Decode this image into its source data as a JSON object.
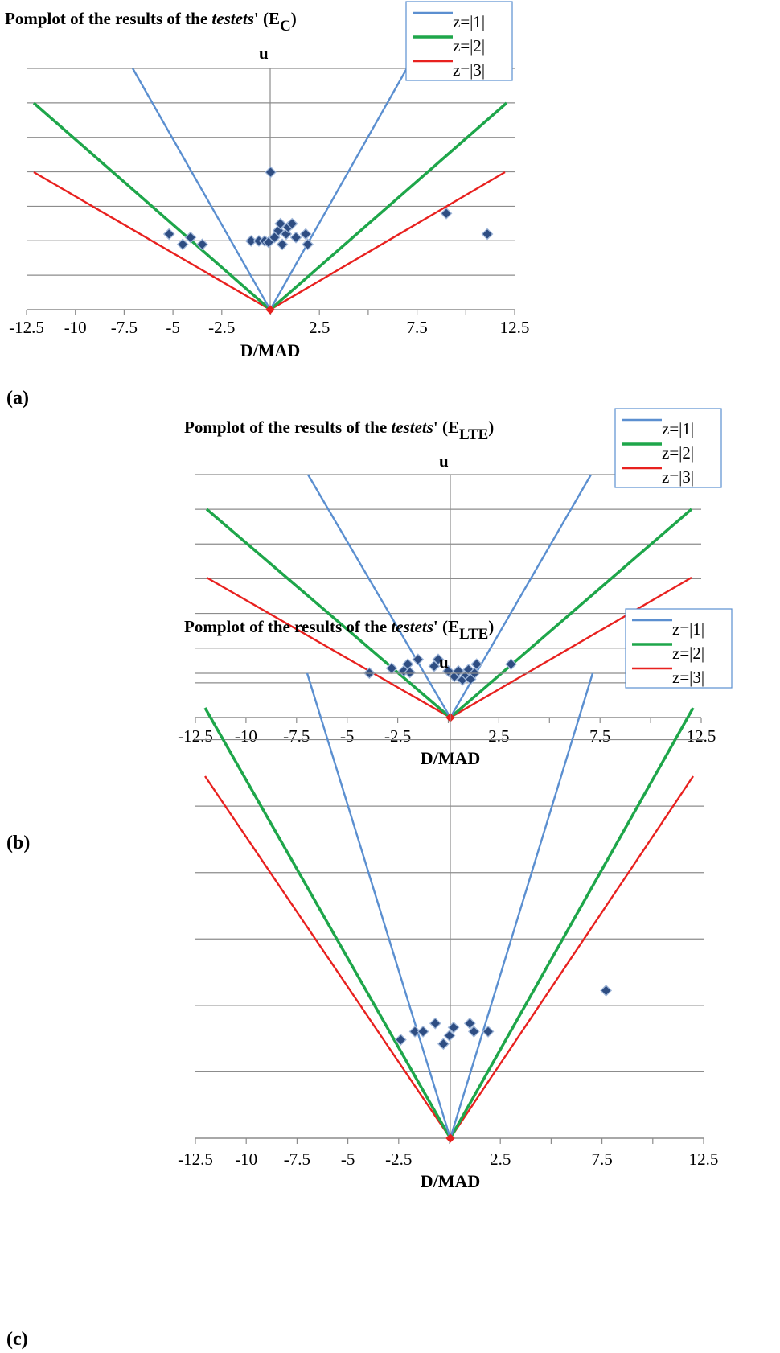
{
  "panel_labels": [
    "(a)",
    "(b)",
    "(c)"
  ],
  "chart_data": [
    {
      "type": "scatter",
      "title_prefix": "Pomplot of the results of the",
      "title_italic": "testets",
      "title_suffix": "' (E",
      "title_subscript": "C",
      "title_close": ")",
      "ylabel": "u",
      "xlabel": "D/MAD",
      "xlim": [
        -12.5,
        12.5
      ],
      "xticks": [
        "-12.5",
        "-10",
        "-7.5",
        "-5",
        "-2.5",
        "2.5",
        "7.5",
        "12.5"
      ],
      "legend": [
        "z=|1|",
        "z=|2|",
        "z=|3|"
      ],
      "legend_colors": [
        "#5b8fd0",
        "#1ea64a",
        "#e8211f"
      ],
      "point_color": "#2e4d82",
      "grid": true,
      "points": [
        [
          -5.2,
          1.1
        ],
        [
          -4.5,
          0.95
        ],
        [
          -4.1,
          1.05
        ],
        [
          -3.5,
          0.95
        ],
        [
          0.0,
          2.0
        ],
        [
          -1.0,
          1.0
        ],
        [
          -0.6,
          1.0
        ],
        [
          -0.3,
          1.0
        ],
        [
          -0.1,
          0.98
        ],
        [
          0.2,
          1.05
        ],
        [
          0.4,
          1.15
        ],
        [
          0.5,
          1.25
        ],
        [
          0.6,
          0.95
        ],
        [
          0.8,
          1.1
        ],
        [
          0.9,
          1.2
        ],
        [
          1.1,
          1.25
        ],
        [
          1.3,
          1.05
        ],
        [
          1.8,
          1.1
        ],
        [
          1.9,
          0.95
        ],
        [
          9.0,
          1.4
        ],
        [
          11.1,
          1.1
        ]
      ]
    },
    {
      "type": "scatter",
      "title_prefix": "Pomplot of the results of the",
      "title_italic": "testets",
      "title_suffix": "' (E",
      "title_subscript": "LTE",
      "title_close": ")",
      "ylabel": "u",
      "xlabel": "D/MAD",
      "xlim": [
        -12.5,
        12.5
      ],
      "xticks": [
        "-12.5",
        "-10",
        "-7.5",
        "-5",
        "-2.5",
        "2.5",
        "7.5",
        "12.5"
      ],
      "legend": [
        "z=|1|",
        "z=|2|",
        "z=|3|"
      ],
      "legend_colors": [
        "#5b8fd0",
        "#1ea64a",
        "#e8211f"
      ],
      "point_color": "#2e4d82",
      "grid": true,
      "points": [
        [
          -3.9,
          0.65
        ],
        [
          -2.8,
          0.72
        ],
        [
          -2.2,
          0.68
        ],
        [
          -2.0,
          0.78
        ],
        [
          -1.9,
          0.66
        ],
        [
          -1.5,
          0.85
        ],
        [
          -0.7,
          0.75
        ],
        [
          -0.5,
          0.85
        ],
        [
          0.0,
          0.68
        ],
        [
          0.3,
          0.6
        ],
        [
          0.5,
          0.68
        ],
        [
          0.7,
          0.55
        ],
        [
          0.9,
          0.62
        ],
        [
          1.0,
          0.7
        ],
        [
          1.1,
          0.56
        ],
        [
          1.3,
          0.65
        ],
        [
          1.4,
          0.78
        ],
        [
          3.1,
          0.78
        ]
      ]
    },
    {
      "type": "scatter",
      "title_prefix": "Pomplot of the results of the",
      "title_italic": "testets",
      "title_suffix": "' (E",
      "title_subscript": "LTE",
      "title_close": ")",
      "ylabel": "u",
      "xlabel": "D/MAD",
      "xlim": [
        -12.5,
        12.5
      ],
      "xticks": [
        "-12.5",
        "-10",
        "-7.5",
        "-5",
        "-2.5",
        "2.5",
        "7.5",
        "12.5"
      ],
      "legend": [
        "z=|1|",
        "z=|2|",
        "z=|3|"
      ],
      "legend_colors": [
        "#5b8fd0",
        "#1ea64a",
        "#e8211f"
      ],
      "point_color": "#2e4d82",
      "grid": true,
      "points": [
        [
          -2.4,
          1.2
        ],
        [
          -1.7,
          1.3
        ],
        [
          -1.3,
          1.3
        ],
        [
          -0.7,
          1.4
        ],
        [
          -0.3,
          1.15
        ],
        [
          0.0,
          1.25
        ],
        [
          0.2,
          1.35
        ],
        [
          1.0,
          1.4
        ],
        [
          1.2,
          1.3
        ],
        [
          1.9,
          1.3
        ],
        [
          7.7,
          1.8
        ]
      ]
    }
  ]
}
